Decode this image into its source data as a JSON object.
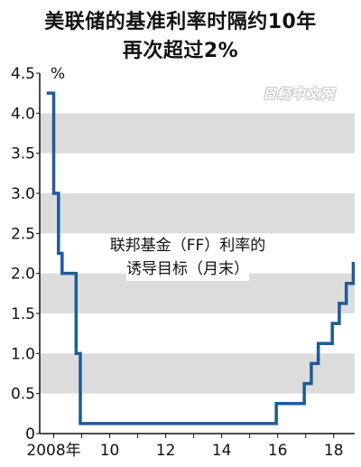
{
  "chart_data": {
    "type": "line",
    "step": true,
    "title_lines": [
      "美联储的基准利率时隔约10年",
      "再次超过2%"
    ],
    "annotation_lines": [
      "联邦基金（FF）利率的",
      "诱导目标（月末）"
    ],
    "watermark": "日经中文网",
    "y_unit": "%",
    "ylim": [
      0,
      4.5
    ],
    "y_ticks": [
      "0",
      "0.5",
      "1.0",
      "1.5",
      "2.0",
      "2.5",
      "3.0",
      "3.5",
      "4.0",
      "4.5"
    ],
    "y_tick_values": [
      0,
      0.5,
      1.0,
      1.5,
      2.0,
      2.5,
      3.0,
      3.5,
      4.0,
      4.5
    ],
    "x_range": [
      2007.5,
      2018.75
    ],
    "x_ticks": [
      "2008年",
      "10",
      "12",
      "14",
      "16",
      "18"
    ],
    "x_tick_values": [
      2008,
      2010,
      2012,
      2014,
      2016,
      2018
    ],
    "grid": "alternating horizontal bands",
    "colors": {
      "line": "#1f5a96",
      "band": "#dcdcdc"
    },
    "series": [
      {
        "points": [
          [
            2007.75,
            4.25
          ],
          [
            2008.0,
            3.0
          ],
          [
            2008.17,
            2.25
          ],
          [
            2008.3,
            2.0
          ],
          [
            2008.8,
            1.0
          ],
          [
            2008.95,
            0.125
          ],
          [
            2015.95,
            0.375
          ],
          [
            2016.95,
            0.625
          ],
          [
            2017.2,
            0.875
          ],
          [
            2017.45,
            1.125
          ],
          [
            2017.95,
            1.375
          ],
          [
            2018.2,
            1.625
          ],
          [
            2018.45,
            1.875
          ],
          [
            2018.7,
            2.125
          ]
        ]
      }
    ]
  }
}
